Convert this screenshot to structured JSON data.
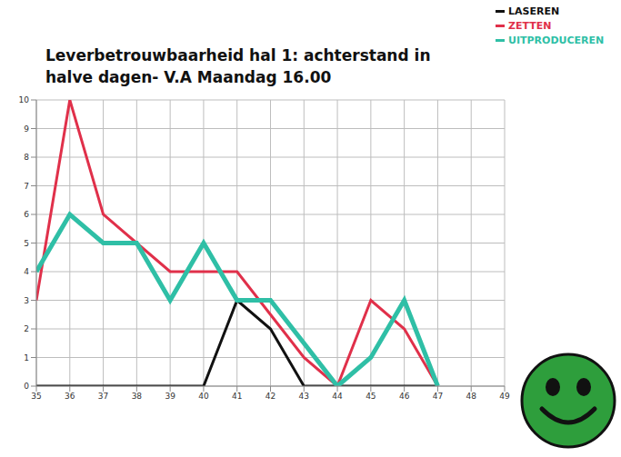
{
  "chart_data": {
    "type": "line",
    "title": "Leverbetrouwbaarheid hal 1: achterstand in halve dagen- V.A Maandag 16.00",
    "x": [
      35,
      36,
      37,
      38,
      39,
      40,
      41,
      42,
      43,
      44,
      45,
      46,
      47
    ],
    "series": [
      {
        "name": "LASEREN",
        "color": "#111111",
        "values": [
          0,
          0,
          0,
          0,
          0,
          0,
          3,
          2,
          0,
          0,
          0,
          0,
          0
        ]
      },
      {
        "name": "ZETTEN",
        "color": "#e0304a",
        "values": [
          3,
          10,
          6,
          5,
          4,
          4,
          4,
          2.5,
          1,
          0,
          3,
          2,
          0
        ]
      },
      {
        "name": "UITPRODUCEREN",
        "color": "#2fbfa6",
        "values": [
          4,
          6,
          5,
          5,
          3,
          5,
          3,
          3,
          1.5,
          0,
          1,
          3,
          0
        ]
      }
    ],
    "xlim": [
      35,
      49
    ],
    "xticks": [
      35,
      36,
      37,
      38,
      39,
      40,
      41,
      42,
      43,
      44,
      45,
      46,
      47,
      48,
      49
    ],
    "ylim": [
      0,
      10
    ],
    "yticks": [
      0,
      1,
      2,
      3,
      4,
      5,
      6,
      7,
      8,
      9,
      10
    ],
    "grid": true,
    "legend": "top-right"
  }
}
